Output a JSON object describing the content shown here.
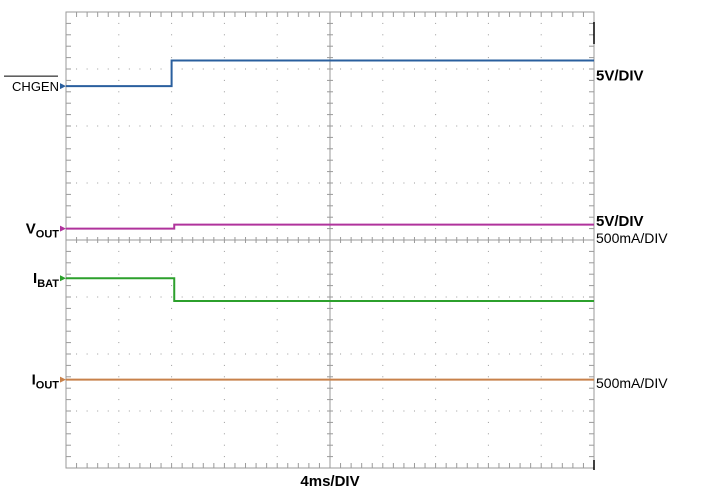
{
  "chart_data": {
    "type": "line",
    "title": "",
    "xlabel": "4ms/DIV",
    "ylabel": "",
    "x_unit": "ms",
    "x_per_div_ms": 4,
    "x_range_ms": [
      0,
      40
    ],
    "y_range_div": [
      0,
      8
    ],
    "grid": true,
    "colors": {
      "chgen": "#2a5f9e",
      "vout": "#b0339c",
      "ibat": "#2ca02c",
      "iout": "#c8814a",
      "grid": "#9a9a9a"
    },
    "channel_markers": [
      {
        "text": "CHGEN",
        "overbar": true,
        "sub": "",
        "color": "#2a5f9e"
      },
      {
        "text": "V",
        "overbar": false,
        "sub": "OUT",
        "color": "#b0339c"
      },
      {
        "text": "I",
        "overbar": false,
        "sub": "BAT",
        "color": "#2ca02c"
      },
      {
        "text": "I",
        "overbar": false,
        "sub": "OUT",
        "color": "#c8814a"
      }
    ],
    "scale_labels": [
      "5V/DIV",
      "5V/DIV",
      "500mA/DIV",
      "500mA/DIV"
    ],
    "series": [
      {
        "color": "#2a5f9e",
        "step_ms": 8.0,
        "y_before_div": 6.7,
        "y_after_div": 7.15
      },
      {
        "color": "#b0339c",
        "step_ms": 8.2,
        "y_before_div": 4.2,
        "y_after_div": 4.27
      },
      {
        "color": "#2ca02c",
        "step_ms": 8.2,
        "y_before_div": 3.33,
        "y_after_div": 2.93
      },
      {
        "color": "#c8814a",
        "step_ms": null,
        "y_before_div": 1.55,
        "y_after_div": 1.55
      }
    ],
    "trace_y_div": [
      6.7,
      4.2,
      3.33,
      1.55
    ],
    "scale_label_y_div": [
      6.8,
      4.25,
      3.95,
      1.4
    ]
  }
}
